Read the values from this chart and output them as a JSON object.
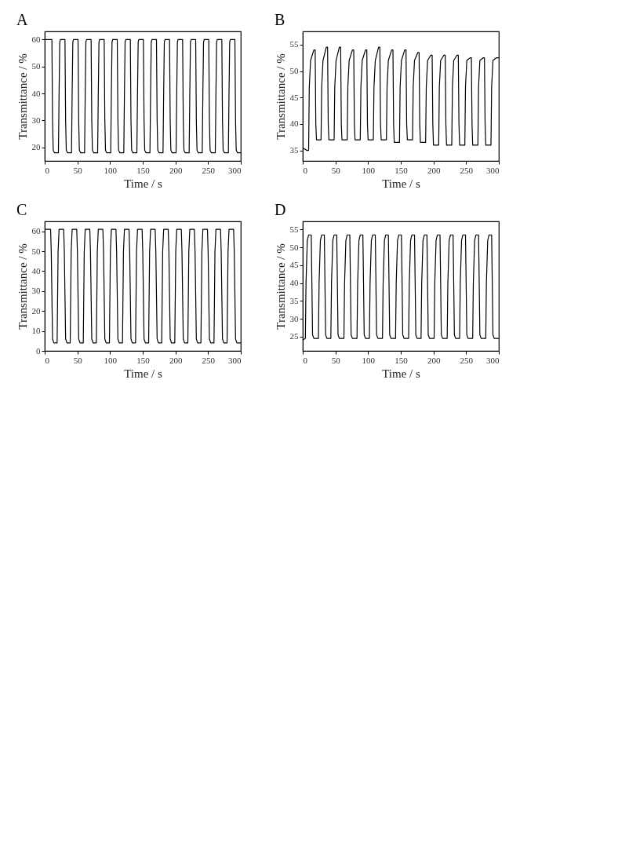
{
  "chart_data": [
    {
      "type": "line",
      "title": "A",
      "xlabel": "Time / s",
      "ylabel": "Transmittance / %",
      "xlim": [
        0,
        300
      ],
      "xticks": [
        0,
        50,
        100,
        150,
        200,
        250,
        300
      ],
      "ylim": [
        15,
        63
      ],
      "yticks": [
        20,
        30,
        40,
        50,
        60
      ],
      "grid": false,
      "series": [
        {
          "color": "#000000",
          "x": [
            0,
            11,
            12,
            13,
            15,
            21,
            22,
            23,
            24,
            31,
            32,
            33,
            35,
            41,
            42,
            43,
            44,
            51,
            52,
            53,
            55,
            61,
            62,
            63,
            64,
            71,
            72,
            73,
            75,
            81,
            82,
            83,
            84,
            91,
            92,
            93,
            95,
            101,
            102,
            103,
            104,
            111,
            112,
            113,
            115,
            121,
            122,
            123,
            124,
            131,
            132,
            133,
            135,
            141,
            142,
            143,
            144,
            151,
            152,
            153,
            155,
            161,
            162,
            163,
            164,
            171,
            172,
            173,
            175,
            181,
            182,
            183,
            184,
            191,
            192,
            193,
            195,
            201,
            202,
            203,
            204,
            211,
            212,
            213,
            215,
            221,
            222,
            223,
            224,
            231,
            232,
            233,
            235,
            241,
            242,
            243,
            244,
            251,
            252,
            253,
            255,
            261,
            262,
            263,
            264,
            271,
            272,
            273,
            275,
            281,
            282,
            283,
            284,
            291,
            292,
            293,
            295,
            300
          ],
          "values": [
            60,
            60,
            30,
            19,
            18,
            18,
            40,
            59,
            60,
            60,
            30,
            19,
            18,
            18,
            40,
            59,
            60,
            60,
            30,
            19,
            18,
            18,
            40,
            59,
            60,
            60,
            30,
            19,
            18,
            18,
            40,
            59,
            60,
            60,
            30,
            19,
            18,
            18,
            40,
            59,
            60,
            60,
            30,
            19,
            18,
            18,
            40,
            59,
            60,
            60,
            30,
            19,
            18,
            18,
            40,
            59,
            60,
            60,
            30,
            19,
            18,
            18,
            40,
            59,
            60,
            60,
            30,
            19,
            18,
            18,
            40,
            59,
            60,
            60,
            30,
            19,
            18,
            18,
            40,
            59,
            60,
            60,
            30,
            19,
            18,
            18,
            40,
            59,
            60,
            60,
            30,
            19,
            18,
            18,
            40,
            59,
            60,
            60,
            30,
            19,
            18,
            18,
            40,
            59,
            60,
            60,
            30,
            19,
            18,
            18,
            40,
            59,
            60,
            60,
            30,
            19,
            18,
            18
          ]
        }
      ]
    },
    {
      "type": "line",
      "title": "B",
      "xlabel": "Time / s",
      "ylabel": "Transmittance / %",
      "xlim": [
        0,
        300
      ],
      "xticks": [
        0,
        50,
        100,
        150,
        200,
        250,
        300
      ],
      "ylim": [
        33,
        57.5
      ],
      "yticks": [
        35,
        40,
        45,
        50,
        55
      ],
      "grid": false,
      "series": [
        {
          "color": "#000000",
          "x": [
            0,
            6,
            9,
            10,
            12,
            17,
            19,
            20,
            21,
            28,
            29,
            31,
            36,
            38,
            39,
            40,
            48,
            49,
            51,
            56,
            58,
            59,
            60,
            68,
            69,
            71,
            76,
            78,
            79,
            80,
            88,
            89,
            91,
            96,
            98,
            99,
            100,
            108,
            109,
            111,
            116,
            118,
            119,
            120,
            128,
            129,
            131,
            136,
            138,
            139,
            140,
            148,
            149,
            151,
            156,
            158,
            159,
            160,
            168,
            169,
            171,
            176,
            178,
            179,
            180,
            188,
            189,
            191,
            196,
            198,
            199,
            200,
            208,
            209,
            211,
            216,
            218,
            219,
            220,
            228,
            229,
            231,
            236,
            238,
            239,
            240,
            248,
            249,
            251,
            256,
            258,
            259,
            260,
            268,
            269,
            271,
            276,
            278,
            279,
            280,
            288,
            289,
            291,
            296,
            300
          ],
          "values": [
            35.5,
            35,
            35,
            47,
            52,
            54,
            54,
            40,
            37,
            37,
            47,
            52,
            54.5,
            54.5,
            40,
            37,
            37,
            47,
            52,
            54.5,
            54.5,
            40,
            37,
            37,
            47,
            52,
            54,
            54,
            40,
            37,
            37,
            47,
            52,
            54,
            54,
            40,
            37,
            37,
            47,
            52,
            54.5,
            54.5,
            40,
            37,
            37,
            47,
            52,
            54,
            54,
            40,
            36.5,
            36.5,
            47,
            52,
            54,
            54,
            40,
            37,
            37,
            47,
            52,
            53.5,
            53.5,
            40,
            36.5,
            36.5,
            47,
            52,
            53,
            53,
            40,
            36,
            36,
            47,
            52,
            53,
            53,
            40,
            36,
            36,
            47,
            52,
            53,
            53,
            40,
            36,
            36,
            47,
            52,
            52.5,
            52.5,
            40,
            36,
            36,
            47,
            52,
            52.5,
            52.5,
            40,
            36,
            36,
            47,
            52,
            52.5,
            52.5
          ]
        }
      ]
    },
    {
      "type": "line",
      "title": "C",
      "xlabel": "Time / s",
      "ylabel": "Transmittance / %",
      "xlim": [
        0,
        300
      ],
      "xticks": [
        0,
        50,
        100,
        150,
        200,
        250,
        300
      ],
      "ylim": [
        0,
        65
      ],
      "yticks": [
        0,
        10,
        20,
        30,
        40,
        50,
        60
      ],
      "grid": false,
      "series": [
        {
          "color": "#000000",
          "x": [
            0,
            9,
            10,
            12,
            14,
            19,
            20.5,
            22,
            29,
            30,
            32,
            34,
            39,
            40.5,
            42,
            49,
            50,
            52,
            54,
            59,
            60.5,
            62,
            69,
            70,
            72,
            74,
            79,
            80.5,
            82,
            89,
            90,
            92,
            94,
            99,
            100.5,
            102,
            109,
            110,
            112,
            114,
            119,
            120.5,
            122,
            129,
            130,
            132,
            134,
            139,
            140.5,
            142,
            149,
            150,
            152,
            154,
            159,
            160.5,
            162,
            169,
            170,
            172,
            174,
            179,
            180.5,
            182,
            189,
            190,
            192,
            194,
            199,
            200.5,
            202,
            209,
            210,
            212,
            214,
            219,
            220.5,
            222,
            229,
            230,
            232,
            234,
            239,
            240.5,
            242,
            249,
            250,
            252,
            254,
            259,
            260.5,
            262,
            269,
            270,
            272,
            274,
            279,
            280.5,
            282,
            289,
            290,
            292,
            294,
            300
          ],
          "values": [
            61,
            61,
            50,
            6,
            4,
            4,
            50,
            61,
            61,
            50,
            6,
            4,
            4,
            50,
            61,
            61,
            50,
            6,
            4,
            4,
            50,
            61,
            61,
            50,
            6,
            4,
            4,
            50,
            61,
            61,
            50,
            6,
            4,
            4,
            50,
            61,
            61,
            50,
            6,
            4,
            4,
            50,
            61,
            61,
            50,
            6,
            4,
            4,
            50,
            61,
            61,
            50,
            6,
            4,
            4,
            50,
            61,
            61,
            50,
            6,
            4,
            4,
            50,
            61,
            61,
            50,
            6,
            4,
            4,
            50,
            61,
            61,
            50,
            6,
            4,
            4,
            50,
            61,
            61,
            50,
            6,
            4,
            4,
            50,
            61,
            61,
            50,
            6,
            4,
            4,
            50,
            61,
            61,
            50,
            6,
            4,
            4,
            50,
            61,
            61,
            50,
            6,
            4,
            4
          ]
        }
      ]
    },
    {
      "type": "line",
      "title": "D",
      "xlabel": "Time / s",
      "ylabel": "Transmittance / %",
      "xlim": [
        0,
        300
      ],
      "xticks": [
        0,
        50,
        100,
        150,
        200,
        250,
        300
      ],
      "ylim": [
        21,
        57.3
      ],
      "yticks": [
        25,
        30,
        35,
        40,
        45,
        50,
        55
      ],
      "grid": false,
      "series": [
        {
          "color": "#000000",
          "x": [
            0,
            4,
            5,
            7,
            9,
            13,
            14,
            15,
            17,
            24,
            25,
            27,
            29,
            33,
            34,
            35,
            37,
            43,
            44,
            46,
            48,
            52,
            53,
            54,
            56,
            63,
            64,
            66,
            68,
            72,
            73,
            74,
            76,
            83,
            84,
            86,
            88,
            92,
            93,
            94,
            96,
            102,
            103,
            105,
            107,
            111,
            112,
            113,
            115,
            122,
            123,
            125,
            127,
            131,
            132,
            133,
            135,
            142,
            143,
            145,
            147,
            151,
            152,
            153,
            155,
            162,
            163,
            165,
            167,
            171,
            172,
            173,
            175,
            181,
            182,
            184,
            186,
            190,
            191,
            192,
            194,
            201,
            202,
            204,
            206,
            210,
            211,
            212,
            214,
            221,
            222,
            224,
            226,
            230,
            231,
            232,
            234,
            240,
            241,
            243,
            245,
            249,
            250,
            251,
            253,
            260,
            261,
            263,
            265,
            269,
            270,
            271,
            273,
            280,
            281,
            283,
            285,
            289,
            290,
            291,
            293,
            300
          ],
          "values": [
            24,
            24.5,
            40,
            52,
            53.5,
            53.5,
            40,
            25.5,
            24.5,
            24.5,
            40,
            52,
            53.5,
            53.5,
            40,
            25.5,
            24.5,
            24.5,
            40,
            52,
            53.5,
            53.5,
            40,
            25.5,
            24.5,
            24.5,
            40,
            52,
            53.5,
            53.5,
            40,
            25.5,
            24.5,
            24.5,
            40,
            52,
            53.5,
            53.5,
            40,
            25.5,
            24.5,
            24.5,
            40,
            52,
            53.5,
            53.5,
            40,
            25.5,
            24.5,
            24.5,
            40,
            52,
            53.5,
            53.5,
            40,
            25.5,
            24.5,
            24.5,
            40,
            52,
            53.5,
            53.5,
            40,
            25.5,
            24.5,
            24.5,
            40,
            52,
            53.5,
            53.5,
            40,
            25.5,
            24.5,
            24.5,
            40,
            52,
            53.5,
            53.5,
            40,
            25.5,
            24.5,
            24.5,
            40,
            52,
            53.5,
            53.5,
            40,
            25.5,
            24.5,
            24.5,
            40,
            52,
            53.5,
            53.5,
            40,
            25.5,
            24.5,
            24.5,
            40,
            52,
            53.5,
            53.5,
            40,
            25.5,
            24.5,
            24.5,
            40,
            52,
            53.5,
            53.5,
            40,
            25.5,
            24.5,
            24.5,
            40,
            52,
            53.5,
            53.5,
            40,
            25.5,
            24.5,
            24.5
          ]
        }
      ]
    }
  ]
}
